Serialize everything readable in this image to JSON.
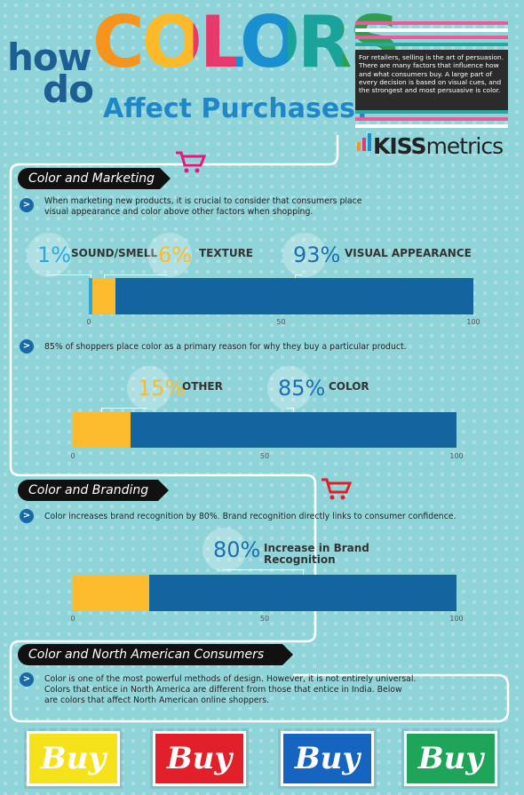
{
  "header": {
    "title_line1": "how",
    "title_line2": "do",
    "title_colors": "COLORS",
    "title_line3": "Affect Purchases?",
    "intro": "For retailers, selling is the art of persuasion. There are many factors that influence how and what consumers buy. A large part of every decision is based on visual cues, and the strongest and most persuasive is color.",
    "brand_bold": "KISS",
    "brand_rest": "metrics"
  },
  "sections": [
    {
      "heading": "Color and Marketing",
      "bullets": [
        "When marketing new products, it is crucial to consider that consumers place visual appearance and color above other factors when shopping.",
        "85% of shoppers place color as a primary reason for why they buy a particular product."
      ]
    },
    {
      "heading": "Color and Branding",
      "bullets": [
        "Color increases brand recognition by 80%. Brand recognition directly links to consumer confidence."
      ]
    },
    {
      "heading": "Color and North American Consumers",
      "bullets": [
        "Color is one of the most powerful methods of design. However, it is not entirely universal. Colors that entice in North America are different from those that entice in India. Below are colors that affect North American online shoppers."
      ]
    }
  ],
  "buttons": [
    "Buy",
    "Buy",
    "Buy",
    "Buy"
  ],
  "chart_data": [
    {
      "type": "bar",
      "orientation": "horizontal",
      "stacked": true,
      "xlim": [
        0,
        100
      ],
      "xticks": [
        0,
        50,
        100
      ],
      "series": [
        {
          "name": "SOUND/SMELL",
          "values": [
            1
          ],
          "value_labels": [
            "1%"
          ],
          "color": "#2aa8e0"
        },
        {
          "name": "TEXTURE",
          "values": [
            6
          ],
          "value_labels": [
            "6%"
          ],
          "color": "#fbbb2c"
        },
        {
          "name": "VISUAL APPEARANCE",
          "values": [
            93
          ],
          "value_labels": [
            "93%"
          ],
          "color": "#12659f"
        }
      ]
    },
    {
      "type": "bar",
      "orientation": "horizontal",
      "stacked": true,
      "xlim": [
        0,
        100
      ],
      "xticks": [
        0,
        50,
        100
      ],
      "series": [
        {
          "name": "OTHER",
          "values": [
            15
          ],
          "value_labels": [
            "15%"
          ],
          "color": "#fbbb2c"
        },
        {
          "name": "COLOR",
          "values": [
            85
          ],
          "value_labels": [
            "85%"
          ],
          "color": "#12659f"
        }
      ]
    },
    {
      "type": "bar",
      "orientation": "horizontal",
      "stacked": true,
      "xlim": [
        0,
        100
      ],
      "xticks": [
        0,
        50,
        100
      ],
      "series": [
        {
          "values": [
            20
          ],
          "color": "#fbbb2c"
        },
        {
          "name": "Increase in Brand Recognition",
          "values": [
            80
          ],
          "value_labels": [
            "80%"
          ],
          "color": "#12659f"
        }
      ]
    }
  ]
}
